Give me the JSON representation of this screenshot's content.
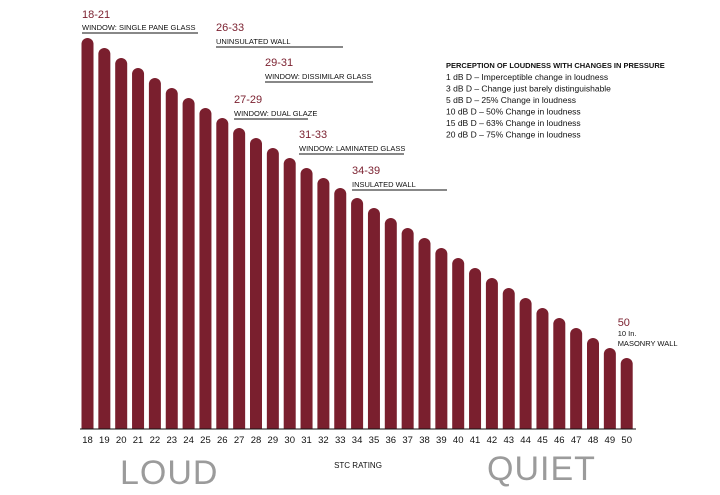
{
  "chart_data": {
    "type": "bar",
    "xlabel": "STC RATING",
    "ylabel": "",
    "categories": [
      "18",
      "19",
      "20",
      "21",
      "22",
      "23",
      "24",
      "25",
      "26",
      "27",
      "28",
      "29",
      "30",
      "31",
      "32",
      "33",
      "34",
      "35",
      "36",
      "37",
      "38",
      "39",
      "40",
      "41",
      "42",
      "43",
      "44",
      "45",
      "46",
      "47",
      "48",
      "49",
      "50"
    ],
    "values": [
      18,
      19,
      20,
      21,
      22,
      23,
      24,
      25,
      26,
      27,
      28,
      29,
      30,
      31,
      32,
      33,
      34,
      35,
      36,
      37,
      38,
      39,
      40,
      41,
      42,
      43,
      44,
      45,
      46,
      47,
      48,
      49,
      50
    ],
    "bar_color": "#7a1f2e",
    "annotations": [
      {
        "range": "18-21",
        "label": "WINDOW: SINGLE PANE GLASS",
        "from": 18,
        "to": 21
      },
      {
        "range": "26-33",
        "label": "UNINSULATED WALL",
        "from": 26,
        "to": 33
      },
      {
        "range": "29-31",
        "label": "WINDOW: DISSIMILAR GLASS",
        "from": 29,
        "to": 31
      },
      {
        "range": "27-29",
        "label": "WINDOW: DUAL GLAZE",
        "from": 27,
        "to": 29
      },
      {
        "range": "31-33",
        "label": "WINDOW: LAMINATED GLASS",
        "from": 31,
        "to": 33
      },
      {
        "range": "34-39",
        "label": "INSULATED WALL",
        "from": 34,
        "to": 39
      },
      {
        "range": "50",
        "label_lines": [
          "10 In.",
          "MASONRY WALL"
        ],
        "from": 50,
        "to": 50
      }
    ],
    "legend": {
      "title": "PERCEPTION OF LOUDNESS WITH CHANGES IN PRESSURE",
      "items": [
        "1 dB D – Imperceptible change in loudness",
        "3 dB D – Change just barely distinguishable",
        "5 dB D – 25% Change in loudness",
        "10 dB D – 50% Change in loudness",
        "15 dB D – 63% Change in loudness",
        "20 dB D – 75% Change in loudness"
      ]
    },
    "end_labels": {
      "left": "LOUD",
      "right": "QUIET"
    }
  }
}
